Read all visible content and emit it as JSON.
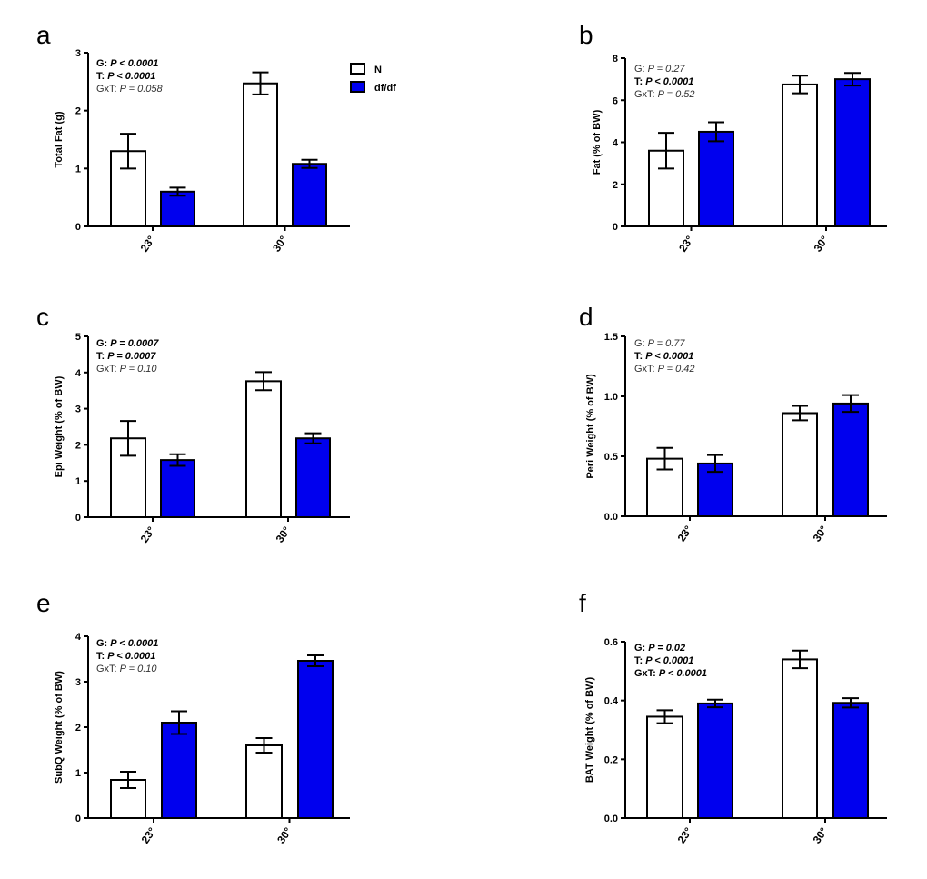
{
  "legend": [
    {
      "label": "N",
      "color": "#ffffff"
    },
    {
      "label": "df/df",
      "color": "#0000ee"
    }
  ],
  "chart_data": [
    {
      "panel": "a",
      "type": "bar",
      "ylabel": "Total Fat (g)",
      "categories": [
        "23°",
        "30°"
      ],
      "ylim": [
        0,
        3
      ],
      "yticks": [
        "0",
        "1",
        "2",
        "3"
      ],
      "series": [
        {
          "name": "N",
          "color": "#ffffff",
          "values": [
            1.3,
            2.47
          ],
          "errors": [
            0.3,
            0.19
          ]
        },
        {
          "name": "df/df",
          "color": "#0000ee",
          "values": [
            0.6,
            1.08
          ],
          "errors": [
            0.07,
            0.07
          ]
        }
      ],
      "stats": [
        {
          "label": "G: ",
          "p": "P < 0.0001",
          "significant": true
        },
        {
          "label": "T: ",
          "p": "P < 0.0001",
          "significant": true
        },
        {
          "label": "GxT: ",
          "p": "P = 0.058",
          "significant": false
        }
      ]
    },
    {
      "panel": "b",
      "type": "bar",
      "ylabel": "Fat (% of BW)",
      "categories": [
        "23°",
        "30°"
      ],
      "ylim": [
        0,
        8
      ],
      "yticks": [
        "0",
        "2",
        "4",
        "6",
        "8"
      ],
      "series": [
        {
          "name": "N",
          "color": "#ffffff",
          "values": [
            3.6,
            6.75
          ],
          "errors": [
            0.85,
            0.42
          ]
        },
        {
          "name": "df/df",
          "color": "#0000ee",
          "values": [
            4.5,
            7.0
          ],
          "errors": [
            0.45,
            0.3
          ]
        }
      ],
      "stats": [
        {
          "label": "G: ",
          "p": "P = 0.27",
          "significant": false
        },
        {
          "label": "T: ",
          "p": "P < 0.0001",
          "significant": true
        },
        {
          "label": "GxT: ",
          "p": "P = 0.52",
          "significant": false
        }
      ]
    },
    {
      "panel": "c",
      "type": "bar",
      "ylabel": "Epi Weight (% of BW)",
      "categories": [
        "23°",
        "30°"
      ],
      "ylim": [
        0,
        5
      ],
      "yticks": [
        "0",
        "1",
        "2",
        "3",
        "4",
        "5"
      ],
      "series": [
        {
          "name": "N",
          "color": "#ffffff",
          "values": [
            2.18,
            3.76
          ],
          "errors": [
            0.48,
            0.25
          ]
        },
        {
          "name": "df/df",
          "color": "#0000ee",
          "values": [
            1.58,
            2.18
          ],
          "errors": [
            0.16,
            0.14
          ]
        }
      ],
      "stats": [
        {
          "label": "G: ",
          "p": "P = 0.0007",
          "significant": true
        },
        {
          "label": "T: ",
          "p": "P = 0.0007",
          "significant": true
        },
        {
          "label": "GxT: ",
          "p": "P = 0.10",
          "significant": false
        }
      ]
    },
    {
      "panel": "d",
      "type": "bar",
      "ylabel": "Peri Weight (% of BW)",
      "categories": [
        "23°",
        "30°"
      ],
      "ylim": [
        0,
        1.5
      ],
      "yticks": [
        "0.0",
        "0.5",
        "1.0",
        "1.5"
      ],
      "series": [
        {
          "name": "N",
          "color": "#ffffff",
          "values": [
            0.48,
            0.86
          ],
          "errors": [
            0.09,
            0.06
          ]
        },
        {
          "name": "df/df",
          "color": "#0000ee",
          "values": [
            0.44,
            0.94
          ],
          "errors": [
            0.07,
            0.07
          ]
        }
      ],
      "stats": [
        {
          "label": "G: ",
          "p": "P = 0.77",
          "significant": false
        },
        {
          "label": "T: ",
          "p": "P < 0.0001",
          "significant": true
        },
        {
          "label": "GxT: ",
          "p": "P = 0.42",
          "significant": false
        }
      ]
    },
    {
      "panel": "e",
      "type": "bar",
      "ylabel": "SubQ Weight (% of BW)",
      "categories": [
        "23°",
        "30°"
      ],
      "ylim": [
        0,
        4
      ],
      "yticks": [
        "0",
        "1",
        "2",
        "3",
        "4"
      ],
      "series": [
        {
          "name": "N",
          "color": "#ffffff",
          "values": [
            0.84,
            1.6
          ],
          "errors": [
            0.18,
            0.16
          ]
        },
        {
          "name": "df/df",
          "color": "#0000ee",
          "values": [
            2.1,
            3.46
          ],
          "errors": [
            0.25,
            0.12
          ]
        }
      ],
      "stats": [
        {
          "label": "G: ",
          "p": "P < 0.0001",
          "significant": true
        },
        {
          "label": "T: ",
          "p": "P < 0.0001",
          "significant": true
        },
        {
          "label": "GxT: ",
          "p": "P = 0.10",
          "significant": false
        }
      ]
    },
    {
      "panel": "f",
      "type": "bar",
      "ylabel": "BAT Weight (% of BW)",
      "categories": [
        "23°",
        "30°"
      ],
      "ylim": [
        0,
        0.6
      ],
      "yticks": [
        "0.0",
        "0.2",
        "0.4",
        "0.6"
      ],
      "series": [
        {
          "name": "N",
          "color": "#ffffff",
          "values": [
            0.345,
            0.54
          ],
          "errors": [
            0.022,
            0.03
          ]
        },
        {
          "name": "df/df",
          "color": "#0000ee",
          "values": [
            0.39,
            0.392
          ],
          "errors": [
            0.013,
            0.016
          ]
        }
      ],
      "stats": [
        {
          "label": "G: ",
          "p": "P = 0.02",
          "significant": true
        },
        {
          "label": "T: ",
          "p": "P < 0.0001",
          "significant": true
        },
        {
          "label": "GxT: ",
          "p": "P < 0.0001",
          "significant": true
        }
      ]
    }
  ]
}
